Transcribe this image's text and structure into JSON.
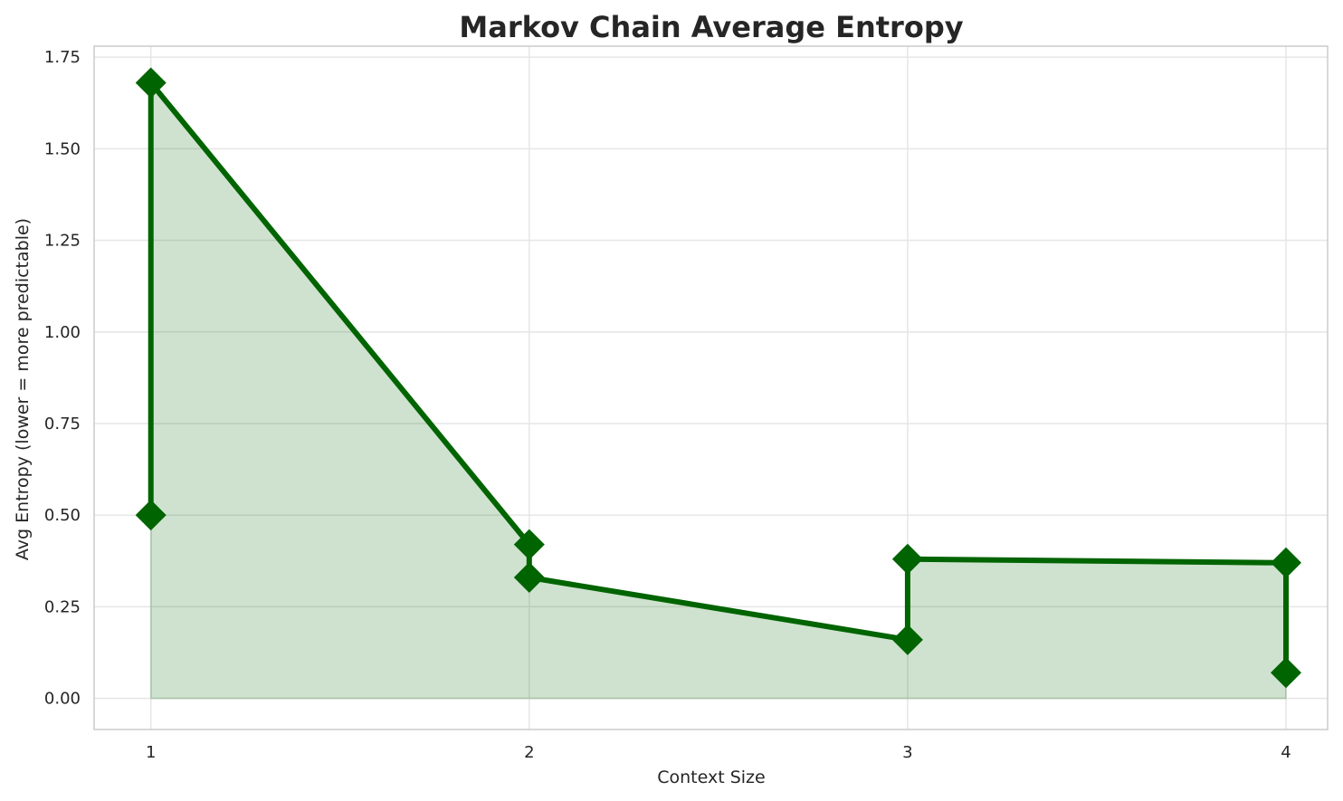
{
  "chart_data": {
    "type": "area",
    "title": "Markov Chain Average Entropy",
    "xlabel": "Context Size",
    "ylabel": "Avg Entropy (lower = more predictable)",
    "x_ticks": [
      "1",
      "2",
      "3",
      "4"
    ],
    "y_ticks": [
      "0.00",
      "0.25",
      "0.50",
      "0.75",
      "1.00",
      "1.25",
      "1.50",
      "1.75"
    ],
    "xlim": [
      0.85,
      4.11
    ],
    "ylim": [
      -0.085,
      1.78
    ],
    "grid": true,
    "colors": {
      "line": "#006400",
      "fill": "#006400",
      "fill_opacity": 0.19
    },
    "marker": "diamond",
    "series": [
      {
        "x": [
          1,
          1,
          2,
          2,
          3,
          3,
          4,
          4
        ],
        "y": [
          0.5,
          1.68,
          0.42,
          0.33,
          0.16,
          0.38,
          0.37,
          0.07
        ]
      }
    ]
  }
}
